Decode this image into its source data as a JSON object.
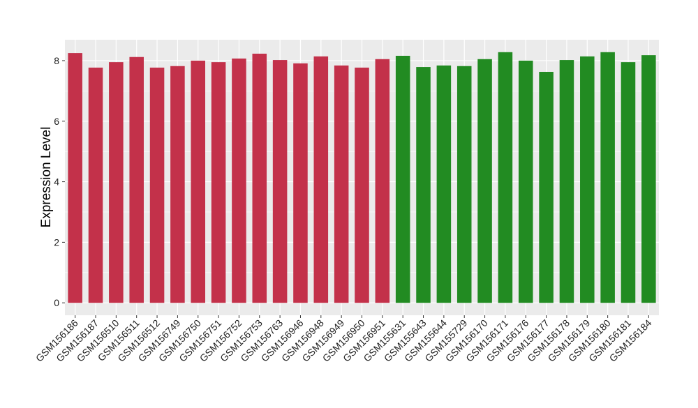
{
  "chart_data": {
    "type": "bar",
    "title": "",
    "xlabel": "",
    "ylabel": "Expression Level",
    "ylim": [
      -0.41,
      8.69
    ],
    "yticks": [
      0,
      2,
      4,
      6,
      8
    ],
    "grid": true,
    "legend": "none",
    "categories": [
      "GSM156186",
      "GSM156187",
      "GSM156510",
      "GSM156511",
      "GSM156512",
      "GSM156749",
      "GSM156750",
      "GSM156751",
      "GSM156752",
      "GSM156753",
      "GSM156763",
      "GSM156946",
      "GSM156948",
      "GSM156949",
      "GSM156950",
      "GSM156951",
      "GSM155631",
      "GSM155643",
      "GSM155644",
      "GSM155729",
      "GSM156170",
      "GSM156171",
      "GSM156176",
      "GSM156177",
      "GSM156178",
      "GSM156179",
      "GSM156180",
      "GSM156181",
      "GSM156184"
    ],
    "values": [
      8.25,
      7.77,
      7.95,
      8.12,
      7.77,
      7.82,
      8.0,
      7.95,
      8.07,
      8.23,
      8.02,
      7.91,
      8.14,
      7.84,
      7.77,
      8.05,
      8.16,
      7.79,
      7.84,
      7.82,
      8.05,
      8.28,
      8.0,
      7.63,
      8.02,
      8.14,
      8.28,
      7.95,
      8.18
    ],
    "groups": [
      0,
      0,
      0,
      0,
      0,
      0,
      0,
      0,
      0,
      0,
      0,
      0,
      0,
      0,
      0,
      0,
      1,
      1,
      1,
      1,
      1,
      1,
      1,
      1,
      1,
      1,
      1,
      1,
      1
    ],
    "colors": [
      "#c3314a",
      "#228b22"
    ]
  }
}
